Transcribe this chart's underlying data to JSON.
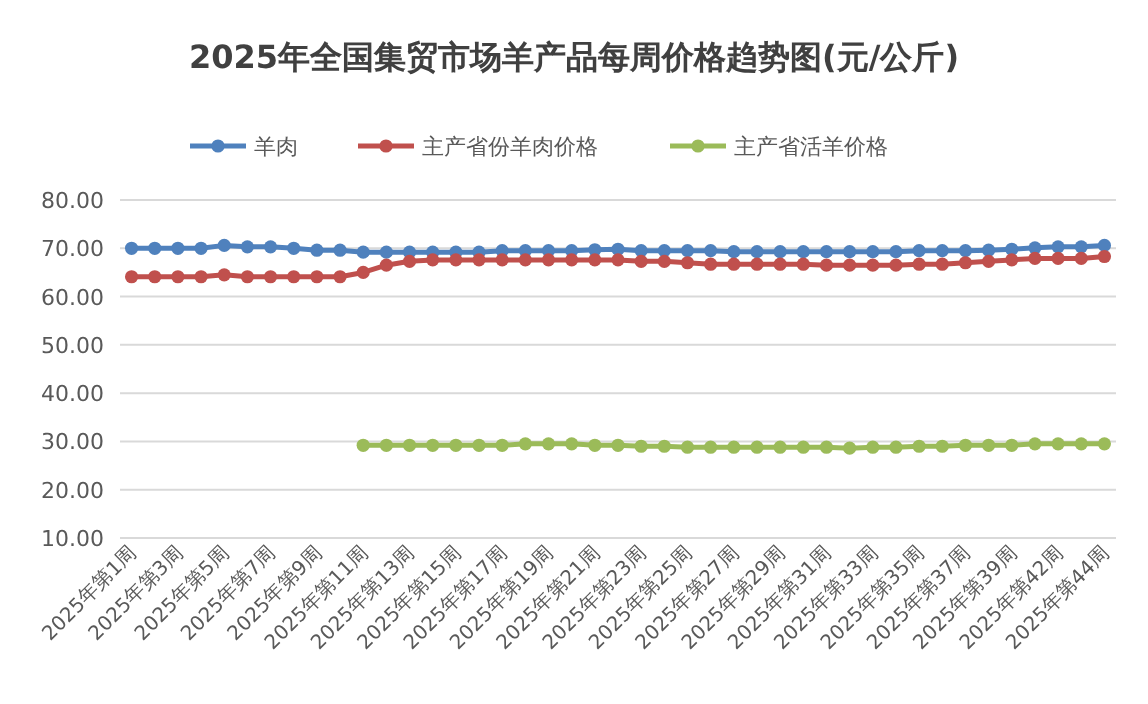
{
  "chart_data": {
    "type": "line",
    "title": "2025年全国集贸市场羊产品每周价格趋势图(元/公斤)",
    "categories": [
      "2025年第1周",
      null,
      "2025年第3周",
      null,
      "2025年第5周",
      null,
      "2025年第7周",
      null,
      "2025年第9周",
      null,
      "2025年第11周",
      null,
      "2025年第13周",
      null,
      "2025年第15周",
      null,
      "2025年第17周",
      null,
      "2025年第19周",
      null,
      "2025年第21周",
      null,
      "2025年第23周",
      null,
      "2025年第25周",
      null,
      "2025年第27周",
      null,
      "2025年第29周",
      null,
      "2025年第31周",
      null,
      "2025年第33周",
      null,
      "2025年第35周",
      null,
      "2025年第37周",
      null,
      "2025年第39周",
      null,
      "2025年第42周",
      null,
      "2025年第44周"
    ],
    "series": [
      {
        "name": "羊肉",
        "color": "#4f81bd",
        "values": [
          70.0,
          70.0,
          70.0,
          70.0,
          70.6,
          70.3,
          70.3,
          70.0,
          69.6,
          69.6,
          69.2,
          69.2,
          69.2,
          69.2,
          69.2,
          69.2,
          69.5,
          69.5,
          69.5,
          69.5,
          69.7,
          69.8,
          69.5,
          69.5,
          69.5,
          69.5,
          69.3,
          69.3,
          69.3,
          69.3,
          69.3,
          69.3,
          69.3,
          69.3,
          69.5,
          69.5,
          69.5,
          69.6,
          69.8,
          70.1,
          70.3,
          70.3,
          70.6
        ]
      },
      {
        "name": "主产省份羊肉价格",
        "color": "#c0504d",
        "values": [
          64.1,
          64.1,
          64.1,
          64.1,
          64.5,
          64.1,
          64.1,
          64.1,
          64.1,
          64.1,
          65.0,
          66.5,
          67.3,
          67.6,
          67.6,
          67.6,
          67.6,
          67.6,
          67.6,
          67.6,
          67.6,
          67.6,
          67.3,
          67.3,
          67.0,
          66.7,
          66.7,
          66.7,
          66.7,
          66.7,
          66.5,
          66.5,
          66.5,
          66.5,
          66.7,
          66.7,
          67.0,
          67.3,
          67.6,
          67.9,
          67.9,
          67.9,
          68.3
        ]
      },
      {
        "name": "主产省活羊价格",
        "color": "#9bbb59",
        "values": [
          null,
          null,
          null,
          null,
          null,
          null,
          null,
          null,
          null,
          null,
          29.2,
          29.2,
          29.2,
          29.2,
          29.2,
          29.2,
          29.2,
          29.5,
          29.5,
          29.5,
          29.2,
          29.2,
          29.0,
          29.0,
          28.8,
          28.8,
          28.8,
          28.8,
          28.8,
          28.8,
          28.8,
          28.6,
          28.8,
          28.8,
          29.0,
          29.0,
          29.2,
          29.2,
          29.2,
          29.5,
          29.5,
          29.5,
          29.5
        ]
      }
    ],
    "ylim": [
      10,
      80
    ],
    "yticks": [
      {
        "value": 10,
        "label": "10.00"
      },
      {
        "value": 20,
        "label": "20.00"
      },
      {
        "value": 30,
        "label": "30.00"
      },
      {
        "value": 40,
        "label": "40.00"
      },
      {
        "value": 50,
        "label": "50.00"
      },
      {
        "value": 60,
        "label": "60.00"
      },
      {
        "value": 70,
        "label": "70.00"
      },
      {
        "value": 80,
        "label": "80.00"
      }
    ],
    "grid": "y",
    "legend": "top",
    "marker": "circle",
    "line_style": "solid"
  }
}
